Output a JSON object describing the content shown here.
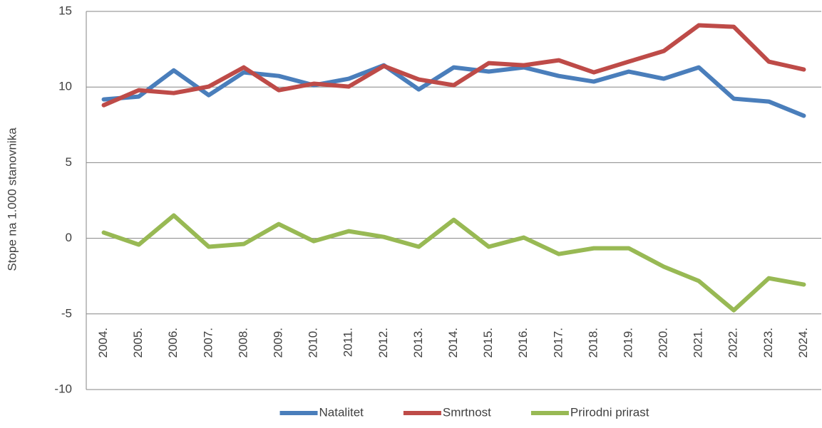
{
  "chart_data": {
    "type": "line",
    "y_label": "Stope na 1.000 stanovnika",
    "categories": [
      "2004.",
      "2005.",
      "2006.",
      "2007.",
      "2008.",
      "2009.",
      "2010.",
      "2011.",
      "2012.",
      "2013.",
      "2014.",
      "2015.",
      "2016.",
      "2017.",
      "2018.",
      "2019.",
      "2020.",
      "2021.",
      "2022.",
      "2023.",
      "2024."
    ],
    "series": [
      {
        "name": "Natalitet",
        "color": "#4a7ebb",
        "values": [
          9.18,
          9.37,
          11.1,
          9.46,
          10.97,
          10.73,
          10.12,
          10.55,
          11.44,
          9.84,
          11.3,
          11.02,
          11.3,
          10.73,
          10.36,
          11.02,
          10.55,
          11.3,
          9.23,
          9.04,
          8.1
        ]
      },
      {
        "name": "Smrtnost",
        "color": "#be4b48",
        "values": [
          8.8,
          9.79,
          9.6,
          10.03,
          11.3,
          9.79,
          10.22,
          10.03,
          11.39,
          10.5,
          10.12,
          11.58,
          11.44,
          11.77,
          10.97,
          11.68,
          12.38,
          14.08,
          13.98,
          11.68,
          11.16
        ]
      },
      {
        "name": "Prirodni prirast",
        "color": "#98b954",
        "values": [
          0.38,
          -0.42,
          1.51,
          -0.56,
          -0.38,
          0.94,
          -0.19,
          0.47,
          0.09,
          -0.56,
          1.22,
          -0.56,
          0.05,
          -1.04,
          -0.66,
          -0.66,
          -1.88,
          -2.82,
          -4.76,
          -2.64,
          -3.06
        ]
      }
    ],
    "ylim": [
      -10,
      15
    ],
    "yticks": [
      -10,
      -5,
      0,
      5,
      10,
      15
    ],
    "grid": true,
    "legend": "bottom"
  }
}
